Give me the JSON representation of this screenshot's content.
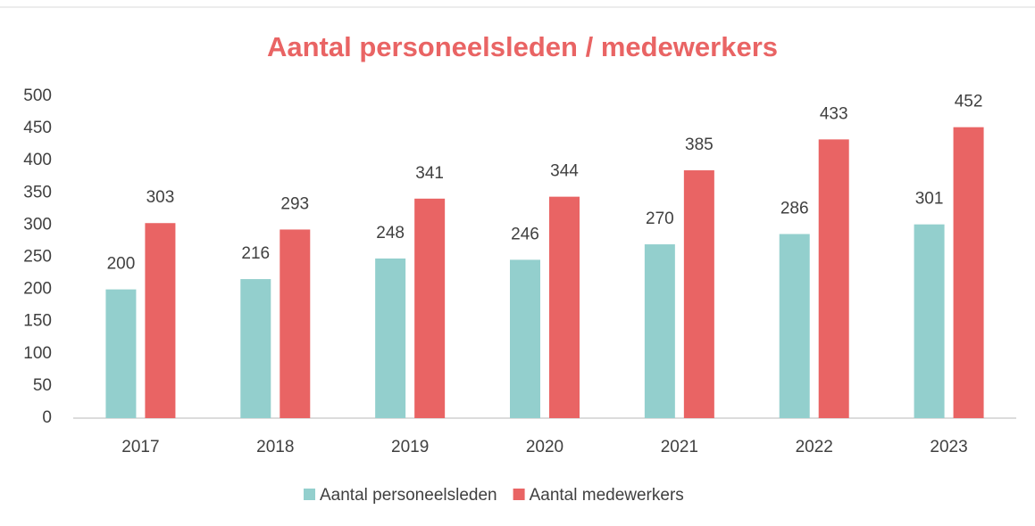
{
  "chart_data": {
    "type": "bar",
    "title": "Aantal personeelsleden / medewerkers",
    "categories": [
      "2017",
      "2018",
      "2019",
      "2020",
      "2021",
      "2022",
      "2023"
    ],
    "series": [
      {
        "name": "Aantal personeelsleden",
        "color": "#93cfcd",
        "values": [
          200,
          216,
          248,
          246,
          270,
          286,
          301
        ]
      },
      {
        "name": "Aantal medewerkers",
        "color": "#e96464",
        "values": [
          303,
          293,
          341,
          344,
          385,
          433,
          452
        ]
      }
    ],
    "ylim": [
      0,
      500
    ],
    "yticks": [
      0,
      50,
      100,
      150,
      200,
      250,
      300,
      350,
      400,
      450,
      500
    ],
    "grid": false,
    "legend": "bottom"
  }
}
